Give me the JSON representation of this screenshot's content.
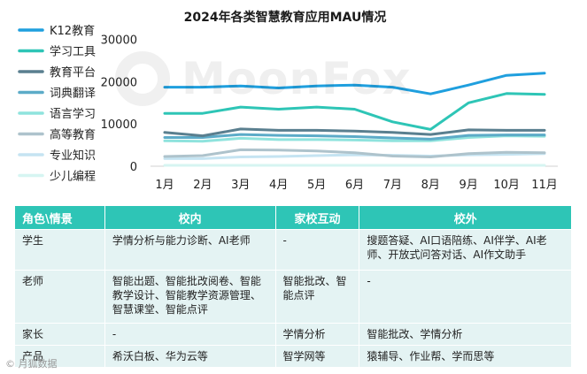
{
  "chart_data": {
    "type": "line",
    "title": "2024年各类智慧教育应用MAU情况",
    "categories": [
      "1月",
      "2月",
      "3月",
      "4月",
      "5月",
      "6月",
      "7月",
      "8月",
      "9月",
      "10月",
      "11月"
    ],
    "yticks": [
      0,
      10000,
      20000,
      30000
    ],
    "ylim": [
      0,
      32000
    ],
    "legend_position": "left",
    "series": [
      {
        "name": "K12教育",
        "color": "#1f9fde",
        "values": [
          18700,
          18700,
          19000,
          18500,
          19000,
          19200,
          18700,
          17100,
          19200,
          21500,
          22000
        ]
      },
      {
        "name": "学习工具",
        "color": "#2ec5b6",
        "values": [
          12500,
          12500,
          14000,
          13500,
          14000,
          13500,
          10500,
          8700,
          15000,
          17200,
          17000
        ]
      },
      {
        "name": "教育平台",
        "color": "#5a7f8f",
        "values": [
          8000,
          7200,
          8800,
          8500,
          8500,
          8300,
          8000,
          7500,
          8600,
          8500,
          8500
        ]
      },
      {
        "name": "词典翻译",
        "color": "#5cabc8",
        "values": [
          6800,
          6800,
          7500,
          7300,
          7200,
          7000,
          6700,
          6400,
          7300,
          7400,
          7400
        ]
      },
      {
        "name": "语言学习",
        "color": "#8fe3dd",
        "values": [
          6000,
          5900,
          6600,
          6300,
          6300,
          6200,
          6000,
          6000,
          6800,
          7200,
          7100
        ]
      },
      {
        "name": "高等教育",
        "color": "#aec3cc",
        "values": [
          2300,
          2500,
          3900,
          3800,
          3600,
          3200,
          2400,
          2200,
          3000,
          3300,
          3200
        ]
      },
      {
        "name": "专业知识",
        "color": "#c5e4f2",
        "values": [
          1800,
          1800,
          2200,
          2300,
          2500,
          2700,
          2600,
          2400,
          2700,
          2800,
          3000
        ]
      },
      {
        "name": "少儿编程",
        "color": "#d6f5f2",
        "values": [
          200,
          200,
          200,
          200,
          200,
          200,
          200,
          200,
          200,
          200,
          200
        ]
      }
    ]
  },
  "table": {
    "headers": [
      "角色\\情景",
      "校内",
      "家校互动",
      "校外"
    ],
    "rows": [
      [
        "学生",
        "学情分析与能力诊断、AI老师",
        "-",
        "搜题答疑、AI口语陪练、AI伴学、AI老师、开放式问答对话、AI作文助手"
      ],
      [
        "老师",
        "智能出题、智能批改阅卷、智能教学设计、智能教学资源管理、智慧课堂、智能点评",
        "智能批改、智能点评",
        "-"
      ],
      [
        "家长",
        "-",
        "学情分析",
        "智能批改、学情分析"
      ],
      [
        "产品",
        "希沃白板、华为云等",
        "智学网等",
        "猿辅导、作业帮、学而思等"
      ]
    ]
  },
  "watermark": "MoonFox",
  "footer": "© 月狐数据"
}
